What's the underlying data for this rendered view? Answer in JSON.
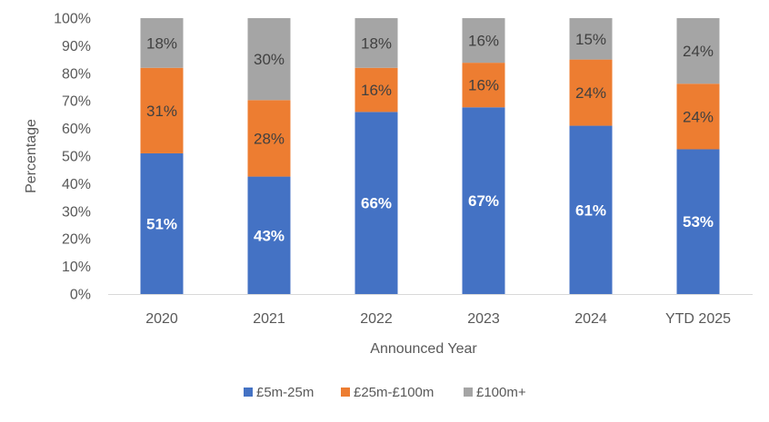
{
  "chart_data": {
    "type": "bar",
    "stacked": "percent",
    "title": "",
    "xlabel": "Announced Year",
    "ylabel": "Percentage",
    "ylim": [
      0,
      100
    ],
    "yticks": [
      "0%",
      "10%",
      "20%",
      "30%",
      "40%",
      "50%",
      "60%",
      "70%",
      "80%",
      "90%",
      "100%"
    ],
    "categories": [
      "2020",
      "2021",
      "2022",
      "2023",
      "2024",
      "YTD 2025"
    ],
    "series": [
      {
        "name": "£5m-25m",
        "color": "#4472C4",
        "values": [
          51,
          43,
          66,
          67,
          61,
          53
        ],
        "labels": [
          "51%",
          "43%",
          "66%",
          "67%",
          "61%",
          "53%"
        ]
      },
      {
        "name": "£25m-£100m",
        "color": "#ED7D31",
        "values": [
          31,
          28,
          16,
          16,
          24,
          24
        ],
        "labels": [
          "31%",
          "28%",
          "16%",
          "16%",
          "24%",
          "24%"
        ]
      },
      {
        "name": "£100m+",
        "color": "#A5A5A5",
        "values": [
          18,
          30,
          18,
          16,
          15,
          24
        ],
        "labels": [
          "18%",
          "30%",
          "18%",
          "16%",
          "15%",
          "24%"
        ]
      }
    ],
    "grid": false,
    "legend_position": "bottom"
  }
}
